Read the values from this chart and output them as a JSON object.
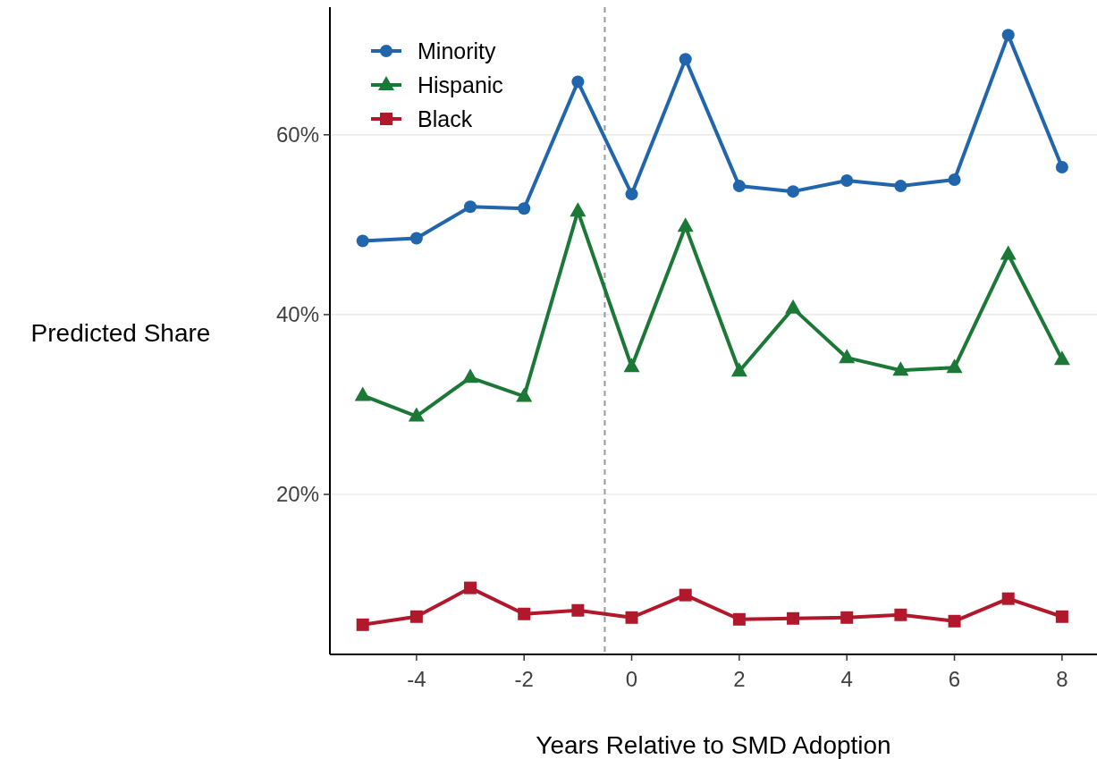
{
  "chart_data": {
    "type": "line",
    "xlabel": "Years Relative to SMD Adoption",
    "ylabel": "Predicted Share",
    "x": [
      -5,
      -4,
      -3,
      -2,
      -1,
      0,
      1,
      2,
      3,
      4,
      5,
      6,
      7,
      8
    ],
    "series": [
      {
        "name": "Minority",
        "color": "#2166ac",
        "marker": "circle",
        "values": [
          48.2,
          48.5,
          52.0,
          51.8,
          65.9,
          53.4,
          68.4,
          54.3,
          53.7,
          54.9,
          54.3,
          55.0,
          71.1,
          56.4
        ]
      },
      {
        "name": "Hispanic",
        "color": "#1b7837",
        "marker": "triangle",
        "values": [
          31.0,
          28.7,
          33.0,
          30.9,
          51.5,
          34.2,
          49.8,
          33.7,
          40.7,
          35.2,
          33.8,
          34.1,
          46.7,
          35.0
        ]
      },
      {
        "name": "Black",
        "color": "#b2182b",
        "marker": "square",
        "values": [
          5.5,
          6.4,
          9.6,
          6.7,
          7.1,
          6.3,
          8.8,
          6.1,
          6.2,
          6.3,
          6.6,
          5.9,
          8.4,
          6.4
        ]
      }
    ],
    "xlim": [
      -5.61,
      8.65
    ],
    "xticks": [
      -4,
      -2,
      0,
      2,
      4,
      6,
      8
    ],
    "ylim": [
      2.2,
      74.2
    ],
    "yticks": [
      {
        "value": 20,
        "label": "20%"
      },
      {
        "value": 40,
        "label": "40%"
      },
      {
        "value": 60,
        "label": "60%"
      }
    ],
    "ref_lines": [
      {
        "axis": "x",
        "value": -0.5,
        "color": "#999999",
        "line_style": "dashed"
      }
    ],
    "grid": "y",
    "legend": "top left",
    "line_style": "solid"
  }
}
